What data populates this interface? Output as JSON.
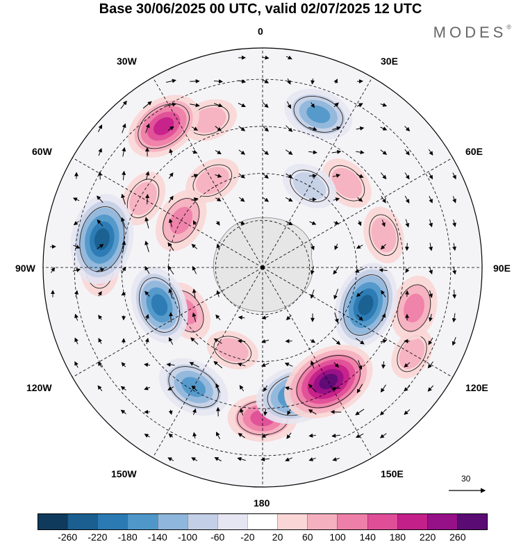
{
  "title": "Base 30/06/2025 00 UTC, valid 02/07/2025 12 UTC",
  "brand": {
    "name": "MODES",
    "mark": "®"
  },
  "longitude_labels": {
    "top": "0",
    "top_left": "30W",
    "top_right": "30E",
    "upper_left": "60W",
    "upper_right": "60E",
    "left": "90W",
    "right": "90E",
    "lower_left": "120W",
    "lower_right": "120E",
    "bottom_left": "150W",
    "bottom_right": "150E",
    "bottom": "180"
  },
  "reference_vector": {
    "label": "30"
  },
  "colorbar": {
    "ticks": [
      "-260",
      "-220",
      "-180",
      "-140",
      "-100",
      "-60",
      "-20",
      "20",
      "60",
      "100",
      "140",
      "180",
      "220",
      "260"
    ],
    "colors": [
      "#0f3a5c",
      "#1a5f90",
      "#2b7ab3",
      "#4f97c9",
      "#8fb6dc",
      "#c3cfe6",
      "#e6e6f2",
      "#ffffff",
      "#fad6d6",
      "#f5b0c0",
      "#ee7fa8",
      "#e04e98",
      "#c42089",
      "#961087",
      "#5b0b74"
    ]
  },
  "anomaly_centers": [
    {
      "lon": 150,
      "lat": -48,
      "value": 240
    },
    {
      "lon": 110,
      "lat": -55,
      "value": -200
    },
    {
      "lon": 105,
      "lat": -40,
      "value": 100
    },
    {
      "lon": 165,
      "lat": -48,
      "value": -180
    },
    {
      "lon": 180,
      "lat": -42,
      "value": 120
    },
    {
      "lon": 210,
      "lat": -46,
      "value": -140
    },
    {
      "lon": 240,
      "lat": -62,
      "value": 80
    },
    {
      "lon": 250,
      "lat": -55,
      "value": -160
    },
    {
      "lon": 280,
      "lat": -38,
      "value": -220
    },
    {
      "lon": 300,
      "lat": -46,
      "value": 60
    },
    {
      "lon": 325,
      "lat": -35,
      "value": 160
    },
    {
      "lon": 300,
      "lat": -60,
      "value": 100
    },
    {
      "lon": 20,
      "lat": -38,
      "value": -120
    },
    {
      "lon": 330,
      "lat": -58,
      "value": 60
    },
    {
      "lon": 340,
      "lat": -40,
      "value": 60
    },
    {
      "lon": 75,
      "lat": -50,
      "value": 60
    },
    {
      "lon": 120,
      "lat": -35,
      "value": 40
    },
    {
      "lon": 45,
      "lat": -52,
      "value": 60
    },
    {
      "lon": 30,
      "lat": -60,
      "value": -60
    },
    {
      "lon": 200,
      "lat": -62,
      "value": 40
    },
    {
      "lon": 270,
      "lat": -38,
      "value": 60
    }
  ]
}
